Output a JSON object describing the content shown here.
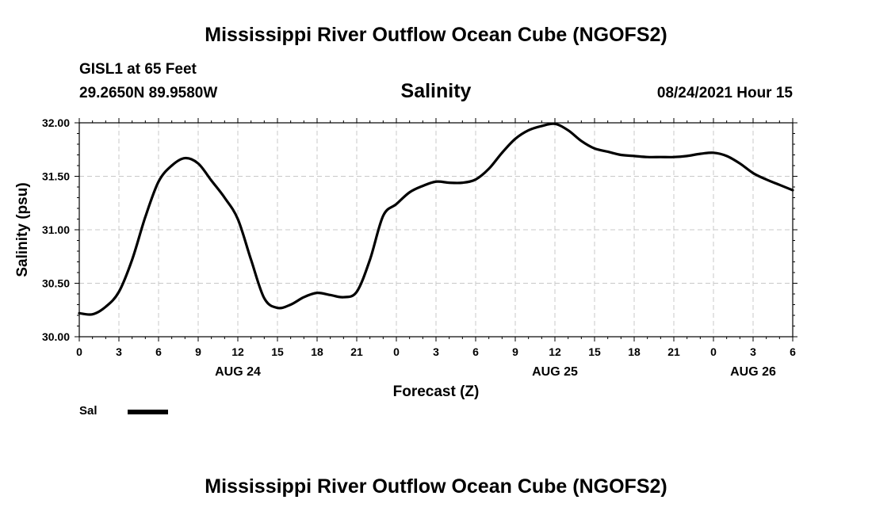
{
  "header": {
    "title": "Mississippi River Outflow Ocean Cube (NGOFS2)",
    "station": "GISL1 at 65 Feet",
    "coords": "29.2650N  89.9580W",
    "subtitle": "Salinity",
    "datetime": "08/24/2021 Hour 15"
  },
  "footer": {
    "title": "Mississippi River Outflow Ocean Cube (NGOFS2)"
  },
  "legend": {
    "label": "Sal",
    "color": "#000000"
  },
  "chart_data": {
    "type": "line",
    "title": "Salinity",
    "xlabel": "Forecast (Z)",
    "ylabel": "Salinity (psu)",
    "xlim": [
      0,
      54
    ],
    "ylim": [
      30.0,
      32.0
    ],
    "grid": true,
    "x_ticks": [
      0,
      3,
      6,
      9,
      12,
      15,
      18,
      21,
      24,
      27,
      30,
      33,
      36,
      39,
      42,
      45,
      48,
      51,
      54
    ],
    "x_tick_labels": [
      "0",
      "3",
      "6",
      "9",
      "12",
      "15",
      "18",
      "21",
      "0",
      "3",
      "6",
      "9",
      "12",
      "15",
      "18",
      "21",
      "0",
      "3",
      "6"
    ],
    "y_ticks": [
      30.0,
      30.5,
      31.0,
      31.5,
      32.0
    ],
    "y_tick_labels": [
      "30.00",
      "30.50",
      "31.00",
      "31.50",
      "32.00"
    ],
    "date_labels": [
      {
        "x": 12,
        "label": "AUG 24"
      },
      {
        "x": 36,
        "label": "AUG 25"
      },
      {
        "x": 51,
        "label": "AUG 26"
      }
    ],
    "series": [
      {
        "name": "Sal",
        "color": "#000000",
        "x": [
          0,
          1,
          2,
          3,
          4,
          5,
          6,
          7,
          8,
          9,
          10,
          11,
          12,
          13,
          14,
          15,
          16,
          17,
          18,
          19,
          20,
          21,
          22,
          23,
          24,
          25,
          26,
          27,
          28,
          29,
          30,
          31,
          32,
          33,
          34,
          35,
          36,
          37,
          38,
          39,
          40,
          41,
          42,
          43,
          44,
          45,
          46,
          47,
          48,
          49,
          50,
          51,
          52,
          53,
          54
        ],
        "y": [
          30.22,
          30.21,
          30.28,
          30.42,
          30.72,
          31.12,
          31.45,
          31.6,
          31.67,
          31.62,
          31.46,
          31.3,
          31.1,
          30.72,
          30.36,
          30.27,
          30.3,
          30.37,
          30.41,
          30.39,
          30.37,
          30.42,
          30.72,
          31.13,
          31.24,
          31.35,
          31.41,
          31.45,
          31.44,
          31.44,
          31.47,
          31.57,
          31.72,
          31.85,
          31.93,
          31.97,
          31.99,
          31.93,
          31.83,
          31.76,
          31.73,
          31.7,
          31.69,
          31.68,
          31.68,
          31.68,
          31.69,
          31.71,
          31.72,
          31.69,
          31.62,
          31.53,
          31.47,
          31.42,
          31.37
        ]
      }
    ]
  }
}
